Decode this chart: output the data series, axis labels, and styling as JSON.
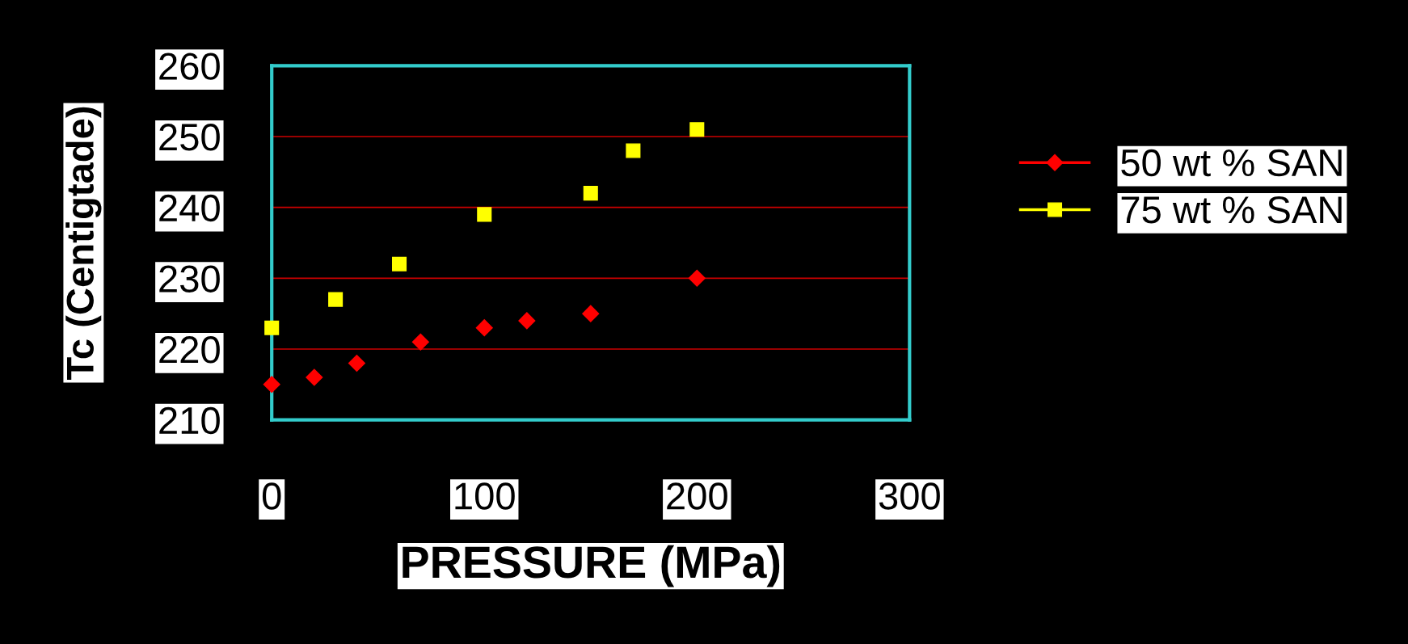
{
  "chart_data": {
    "type": "scatter",
    "xlabel": "PRESSURE (MPa)",
    "ylabel": "Tc (Centigtade)",
    "xlim": [
      0,
      300
    ],
    "xticks": [
      0,
      100,
      200,
      300
    ],
    "ylim": [
      210,
      260
    ],
    "yticks": [
      210,
      220,
      230,
      240,
      250,
      260
    ],
    "grid": "y",
    "legend": "right",
    "series": [
      {
        "name": "50 wt % SAN",
        "color": "#ff0000",
        "marker": "diamond",
        "x": [
          0,
          20,
          40,
          70,
          100,
          120,
          150,
          200
        ],
        "values": [
          215,
          216,
          218,
          221,
          223,
          224,
          225,
          230
        ]
      },
      {
        "name": "75 wt % SAN",
        "color": "#ffff00",
        "marker": "square",
        "x": [
          0,
          30,
          60,
          100,
          150,
          170,
          200
        ],
        "values": [
          223,
          227,
          232,
          239,
          242,
          248,
          251
        ]
      }
    ]
  }
}
